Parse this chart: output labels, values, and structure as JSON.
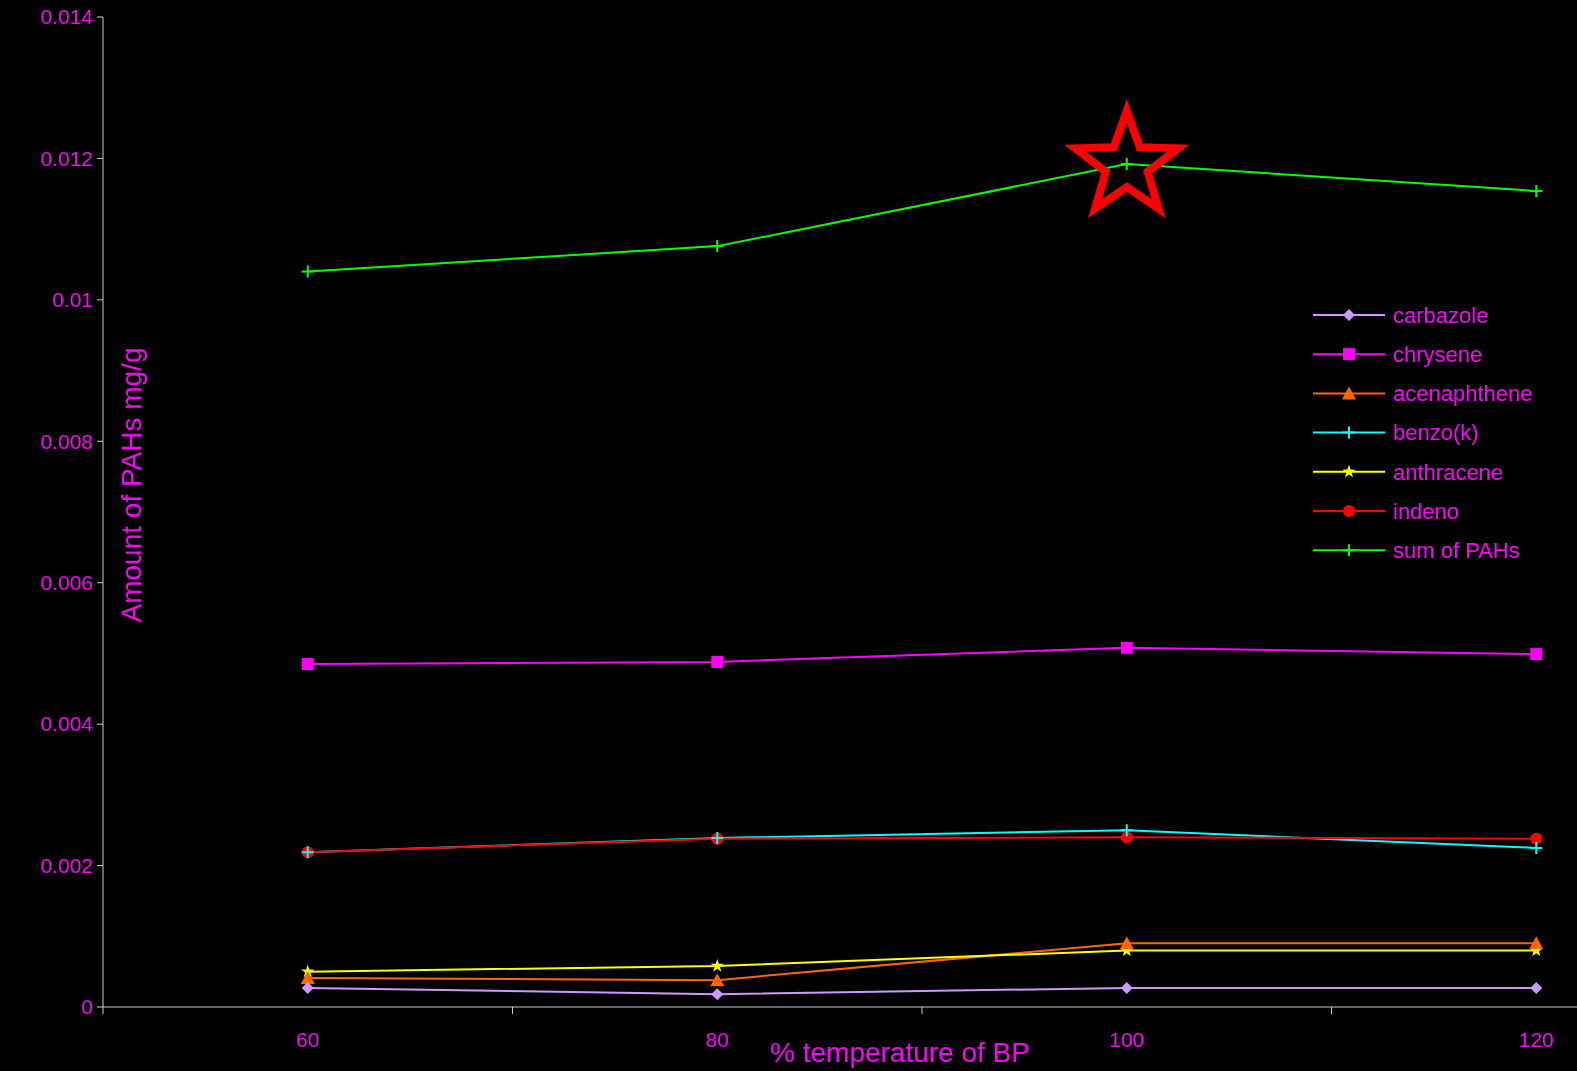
{
  "chart_data": {
    "type": "line",
    "xlabel": "% temperature of BP",
    "ylabel": "Amount of PAHs mg/g",
    "categories": [
      "60",
      "80",
      "100",
      "120"
    ],
    "ylim": [
      0,
      0.014
    ],
    "yticks": [
      0,
      0.002,
      0.004,
      0.006,
      0.008,
      0.01,
      0.012,
      0.014
    ],
    "legend": "right",
    "series": [
      {
        "name": "carbazole",
        "color": "#cc99ff",
        "marker": "diamond",
        "values": [
          0.00027,
          0.00018,
          0.00027,
          0.00027
        ]
      },
      {
        "name": "chrysene",
        "color": "#ff00ff",
        "marker": "square",
        "values": [
          0.00485,
          0.00488,
          0.00508,
          0.00499
        ]
      },
      {
        "name": "acenaphthene",
        "color": "#ff6600",
        "marker": "triangle",
        "values": [
          0.00041,
          0.00038,
          0.0009,
          0.0009
        ]
      },
      {
        "name": "benzo(k)",
        "color": "#00ffff",
        "marker": "cross",
        "values": [
          0.00219,
          0.00239,
          0.0025,
          0.00225
        ]
      },
      {
        "name": "anthracene",
        "color": "#ffff00",
        "marker": "star",
        "values": [
          0.0005,
          0.00058,
          0.0008,
          0.0008
        ]
      },
      {
        "name": "indeno",
        "color": "#ff0000",
        "marker": "circle",
        "values": [
          0.00219,
          0.00238,
          0.0024,
          0.00238
        ]
      },
      {
        "name": "sum of PAHs",
        "color": "#00ff00",
        "marker": "cross",
        "values": [
          0.0104,
          0.01076,
          0.01192,
          0.01154
        ]
      }
    ]
  }
}
